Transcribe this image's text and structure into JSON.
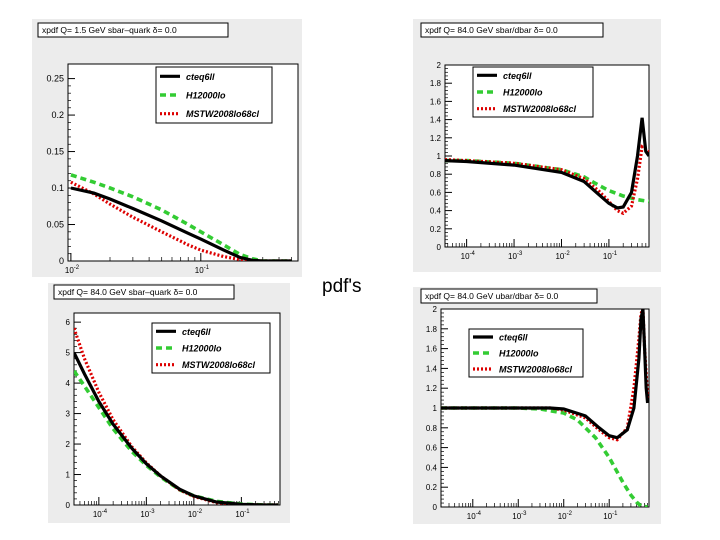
{
  "page": {
    "center_label": "pdf's"
  },
  "legend_colors": {
    "cteq": "#000000",
    "h1": "#33cc33",
    "mstw": "#dd0000"
  },
  "chart_data": [
    {
      "type": "line",
      "title": "xpdf  Q= 1.5 GeV   sbar–quark δ= 0.0",
      "xscale": "log",
      "xlim": [
        0.0095,
        0.56
      ],
      "ylim": [
        0,
        0.27
      ],
      "yticks": [
        0,
        0.05,
        0.1,
        0.15,
        0.2,
        0.25
      ],
      "ytick_labels": [
        "0",
        "0.05",
        "0.1",
        "0.15",
        "0.2",
        "0.25"
      ],
      "xtick_labels": [
        {
          "v": 0.01,
          "base": "10",
          "exp": "-2"
        },
        {
          "v": 0.1,
          "base": "10",
          "exp": "-1"
        }
      ],
      "legend": [
        "cteq6ll",
        "H12000lo",
        "MSTW2008lo68cl"
      ],
      "series": [
        {
          "name": "cteq6ll",
          "x": [
            0.01,
            0.015,
            0.02,
            0.03,
            0.05,
            0.08,
            0.1,
            0.15,
            0.2,
            0.25,
            0.3,
            0.4,
            0.5
          ],
          "y": [
            0.1,
            0.093,
            0.085,
            0.072,
            0.055,
            0.038,
            0.03,
            0.015,
            0.005,
            0.001,
            0,
            0,
            0
          ]
        },
        {
          "name": "H12000lo",
          "x": [
            0.01,
            0.015,
            0.02,
            0.03,
            0.05,
            0.08,
            0.1,
            0.15,
            0.2,
            0.25,
            0.3,
            0.4,
            0.5
          ],
          "y": [
            0.118,
            0.108,
            0.1,
            0.088,
            0.07,
            0.05,
            0.04,
            0.022,
            0.009,
            0.003,
            0,
            0,
            0
          ]
        },
        {
          "name": "MSTW2008lo68cl",
          "x": [
            0.01,
            0.015,
            0.02,
            0.03,
            0.05,
            0.08,
            0.1,
            0.15,
            0.2,
            0.25,
            0.3,
            0.4,
            0.5
          ],
          "y": [
            0.108,
            0.092,
            0.078,
            0.06,
            0.04,
            0.022,
            0.015,
            0.006,
            0.002,
            0,
            0,
            0,
            0
          ]
        }
      ]
    },
    {
      "type": "line",
      "title": "xpdf  Q= 84.0 GeV   sbar/dbar  δ= 0.0",
      "xscale": "log",
      "xlim": [
        3.5e-05,
        0.7
      ],
      "ylim": [
        0,
        2
      ],
      "yticks": [
        0,
        0.2,
        0.4,
        0.6,
        0.8,
        1,
        1.2,
        1.4,
        1.6,
        1.8,
        2
      ],
      "ytick_labels": [
        "0",
        "0.2",
        "0.4",
        "0.6",
        "0.8",
        "1",
        "1.2",
        "1.4",
        "1.6",
        "1.8",
        "2"
      ],
      "xtick_labels": [
        {
          "v": 0.0001,
          "base": "10",
          "exp": "-4"
        },
        {
          "v": 0.001,
          "base": "10",
          "exp": "-3"
        },
        {
          "v": 0.01,
          "base": "10",
          "exp": "-2"
        },
        {
          "v": 0.1,
          "base": "10",
          "exp": "-1"
        }
      ],
      "legend": [
        "cteq6ll",
        "H12000lo",
        "MSTW2008lo68cl"
      ],
      "series": [
        {
          "name": "cteq6ll",
          "x": [
            3.5e-05,
            0.0001,
            0.001,
            0.01,
            0.03,
            0.06,
            0.1,
            0.15,
            0.2,
            0.3,
            0.4,
            0.5,
            0.6,
            0.7
          ],
          "y": [
            0.95,
            0.94,
            0.9,
            0.82,
            0.72,
            0.58,
            0.48,
            0.43,
            0.44,
            0.6,
            1.0,
            1.42,
            1.05,
            1.0
          ]
        },
        {
          "name": "H12000lo",
          "x": [
            3.5e-05,
            0.0001,
            0.001,
            0.01,
            0.03,
            0.06,
            0.1,
            0.2,
            0.4,
            0.7
          ],
          "y": [
            0.95,
            0.95,
            0.92,
            0.85,
            0.77,
            0.68,
            0.62,
            0.56,
            0.52,
            0.5
          ]
        },
        {
          "name": "MSTW2008lo68cl",
          "x": [
            3.5e-05,
            0.0001,
            0.001,
            0.01,
            0.03,
            0.06,
            0.1,
            0.15,
            0.2,
            0.3,
            0.4,
            0.5,
            0.7
          ],
          "y": [
            0.96,
            0.95,
            0.92,
            0.85,
            0.75,
            0.62,
            0.5,
            0.4,
            0.37,
            0.45,
            0.75,
            1.1,
            1.05
          ]
        }
      ]
    },
    {
      "type": "line",
      "title": "xpdf  Q= 84.0 GeV   sbar–quark δ= 0.0",
      "xscale": "log",
      "xlim": [
        3e-05,
        0.65
      ],
      "ylim": [
        0,
        6.3
      ],
      "yticks": [
        0,
        1,
        2,
        3,
        4,
        5,
        6
      ],
      "ytick_labels": [
        "0",
        "1",
        "2",
        "3",
        "4",
        "5",
        "6"
      ],
      "xtick_labels": [
        {
          "v": 0.0001,
          "base": "10",
          "exp": "-4"
        },
        {
          "v": 0.001,
          "base": "10",
          "exp": "-3"
        },
        {
          "v": 0.01,
          "base": "10",
          "exp": "-2"
        },
        {
          "v": 0.1,
          "base": "10",
          "exp": "-1"
        }
      ],
      "legend": [
        "cteq6ll",
        "H12000lo",
        "MSTW2008lo68cl"
      ],
      "series": [
        {
          "name": "cteq6ll",
          "x": [
            3e-05,
            5e-05,
            0.0001,
            0.0002,
            0.0005,
            0.001,
            0.002,
            0.005,
            0.01,
            0.03,
            0.1,
            0.3,
            0.6
          ],
          "y": [
            5.0,
            4.3,
            3.4,
            2.65,
            1.85,
            1.35,
            0.95,
            0.52,
            0.3,
            0.1,
            0.02,
            0,
            0
          ]
        },
        {
          "name": "H12000lo",
          "x": [
            3e-05,
            5e-05,
            0.0001,
            0.0002,
            0.0005,
            0.001,
            0.002,
            0.005,
            0.01,
            0.03,
            0.1,
            0.3,
            0.6
          ],
          "y": [
            4.4,
            3.9,
            3.2,
            2.5,
            1.75,
            1.3,
            0.92,
            0.5,
            0.3,
            0.12,
            0.03,
            0,
            0
          ]
        },
        {
          "name": "MSTW2008lo68cl",
          "x": [
            3e-05,
            5e-05,
            0.0001,
            0.0002,
            0.0005,
            0.001,
            0.002,
            0.005,
            0.01,
            0.03,
            0.1,
            0.3,
            0.6
          ],
          "y": [
            5.8,
            4.8,
            3.7,
            2.8,
            1.9,
            1.38,
            0.95,
            0.5,
            0.28,
            0.08,
            0.01,
            0,
            0
          ]
        }
      ]
    },
    {
      "type": "line",
      "title": "xpdf  Q= 84.0 GeV   ubar/dbar  δ= 0.0",
      "xscale": "log",
      "xlim": [
        2e-05,
        0.75
      ],
      "ylim": [
        0,
        2
      ],
      "yticks": [
        0,
        0.2,
        0.4,
        0.6,
        0.8,
        1,
        1.2,
        1.4,
        1.6,
        1.8,
        2
      ],
      "ytick_labels": [
        "0",
        "0.2",
        "0.4",
        "0.6",
        "0.8",
        "1",
        "1.2",
        "1.4",
        "1.6",
        "1.8",
        "2"
      ],
      "xtick_labels": [
        {
          "v": 0.0001,
          "base": "10",
          "exp": "-4"
        },
        {
          "v": 0.001,
          "base": "10",
          "exp": "-3"
        },
        {
          "v": 0.01,
          "base": "10",
          "exp": "-2"
        },
        {
          "v": 0.1,
          "base": "10",
          "exp": "-1"
        }
      ],
      "legend": [
        "cteq6ll",
        "H12000lo",
        "MSTW2008lo68cl"
      ],
      "series": [
        {
          "name": "cteq6ll",
          "x": [
            2e-05,
            0.0001,
            0.001,
            0.005,
            0.01,
            0.03,
            0.06,
            0.1,
            0.15,
            0.25,
            0.35,
            0.45,
            0.5,
            0.55,
            0.6,
            0.65,
            0.7
          ],
          "y": [
            1.0,
            1.0,
            1.0,
            1.0,
            0.99,
            0.92,
            0.8,
            0.72,
            0.7,
            0.78,
            1.0,
            1.5,
            1.9,
            2.0,
            1.6,
            1.2,
            1.05
          ]
        },
        {
          "name": "H12000lo",
          "x": [
            2e-05,
            0.0001,
            0.001,
            0.003,
            0.01,
            0.02,
            0.05,
            0.1,
            0.2,
            0.3,
            0.4,
            0.5,
            0.7
          ],
          "y": [
            1.0,
            1.0,
            1.0,
            0.99,
            0.95,
            0.88,
            0.7,
            0.5,
            0.25,
            0.12,
            0.05,
            0.01,
            0
          ]
        },
        {
          "name": "MSTW2008lo68cl",
          "x": [
            2e-05,
            0.0001,
            0.001,
            0.005,
            0.01,
            0.03,
            0.06,
            0.1,
            0.15,
            0.25,
            0.35,
            0.45,
            0.5,
            0.55,
            0.6,
            0.7
          ],
          "y": [
            1.0,
            1.0,
            1.0,
            1.0,
            0.98,
            0.9,
            0.78,
            0.7,
            0.68,
            0.8,
            1.2,
            1.7,
            1.95,
            2.0,
            1.6,
            1.1
          ]
        }
      ]
    }
  ]
}
